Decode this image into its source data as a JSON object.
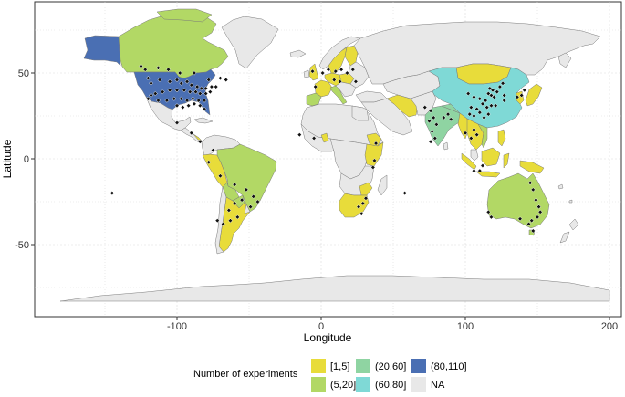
{
  "chart_data": {
    "type": "choropleth",
    "xlabel": "Longitude",
    "ylabel": "Latitude",
    "xlim": [
      -190,
      205
    ],
    "ylim": [
      -90,
      90
    ],
    "x_ticks": [
      -100,
      0,
      100,
      200
    ],
    "y_ticks": [
      -50,
      0,
      50
    ],
    "x_tick_labels": [
      "-100",
      "0",
      "100",
      "200"
    ],
    "y_tick_labels": [
      "-50",
      "0",
      "50"
    ],
    "grid": true,
    "legend": {
      "title": "Number of experiments",
      "position": "bottom",
      "entries": [
        {
          "label": "[1,5]",
          "color": "#e8dc3a"
        },
        {
          "label": "(5,20]",
          "color": "#b2d865"
        },
        {
          "label": "(20,60]",
          "color": "#8fd4a2"
        },
        {
          "label": "(60,80]",
          "color": "#7fd9d6"
        },
        {
          "label": "(80,110]",
          "color": "#4a6fb3"
        },
        {
          "label": "NA",
          "color": "#e8e8e8"
        }
      ]
    },
    "experiment_sites": [
      [
        -120,
        47
      ],
      [
        -118,
        44
      ],
      [
        -112,
        46
      ],
      [
        -105,
        45
      ],
      [
        -100,
        46
      ],
      [
        -97,
        44
      ],
      [
        -93,
        45
      ],
      [
        -90,
        43
      ],
      [
        -86,
        42
      ],
      [
        -83,
        41
      ],
      [
        -80,
        41
      ],
      [
        -76,
        42
      ],
      [
        -73,
        42
      ],
      [
        -118,
        37
      ],
      [
        -115,
        38
      ],
      [
        -110,
        39
      ],
      [
        -105,
        40
      ],
      [
        -100,
        40
      ],
      [
        -95,
        40
      ],
      [
        -91,
        39
      ],
      [
        -87,
        39
      ],
      [
        -84,
        38
      ],
      [
        -80,
        38
      ],
      [
        -77,
        39
      ],
      [
        -120,
        35
      ],
      [
        -113,
        34
      ],
      [
        -107,
        34
      ],
      [
        -102,
        35
      ],
      [
        -97,
        35
      ],
      [
        -93,
        34
      ],
      [
        -89,
        35
      ],
      [
        -85,
        34
      ],
      [
        -81,
        34
      ],
      [
        -100,
        31
      ],
      [
        -96,
        30
      ],
      [
        -92,
        31
      ],
      [
        -88,
        32
      ],
      [
        -84,
        31
      ],
      [
        -81,
        29
      ],
      [
        -125,
        54
      ],
      [
        -122,
        52
      ],
      [
        -113,
        53
      ],
      [
        -106,
        52
      ],
      [
        -98,
        50
      ],
      [
        -88,
        50
      ],
      [
        -78,
        46
      ],
      [
        -70,
        47
      ],
      [
        -66,
        46
      ],
      [
        -100,
        21
      ],
      [
        -90,
        15
      ],
      [
        -84,
        10
      ],
      [
        -75,
        5
      ],
      [
        -78,
        -2
      ],
      [
        -70,
        -10
      ],
      [
        -60,
        -15
      ],
      [
        -52,
        -18
      ],
      [
        -47,
        -22
      ],
      [
        -44,
        -25
      ],
      [
        -49,
        -28
      ],
      [
        -55,
        -24
      ],
      [
        -60,
        -26
      ],
      [
        -64,
        -30
      ],
      [
        -58,
        -34
      ],
      [
        -63,
        -36
      ],
      [
        -68,
        -38
      ],
      [
        -72,
        -36
      ],
      [
        -6,
        51
      ],
      [
        1,
        50
      ],
      [
        5,
        52
      ],
      [
        10,
        51
      ],
      [
        14,
        52
      ],
      [
        18,
        50
      ],
      [
        22,
        52
      ],
      [
        9,
        46
      ],
      [
        13,
        45
      ],
      [
        24,
        45
      ],
      [
        -4,
        42
      ],
      [
        -15,
        14
      ],
      [
        -5,
        12
      ],
      [
        38,
        9
      ],
      [
        37,
        -1
      ],
      [
        36,
        -5
      ],
      [
        31,
        -23
      ],
      [
        29,
        -26
      ],
      [
        26,
        -28
      ],
      [
        28,
        -32
      ],
      [
        58,
        -20
      ],
      [
        -145,
        -20
      ],
      [
        72,
        30
      ],
      [
        76,
        28
      ],
      [
        78,
        24
      ],
      [
        75,
        22
      ],
      [
        80,
        20
      ],
      [
        77,
        16
      ],
      [
        79,
        12
      ],
      [
        76,
        10
      ],
      [
        85,
        24
      ],
      [
        88,
        26
      ],
      [
        90,
        23
      ],
      [
        102,
        38
      ],
      [
        106,
        36
      ],
      [
        110,
        35
      ],
      [
        114,
        34
      ],
      [
        116,
        38
      ],
      [
        118,
        37
      ],
      [
        120,
        36
      ],
      [
        112,
        32
      ],
      [
        115,
        30
      ],
      [
        118,
        31
      ],
      [
        121,
        31
      ],
      [
        110,
        27
      ],
      [
        113,
        24
      ],
      [
        116,
        26
      ],
      [
        104,
        30
      ],
      [
        108,
        29
      ],
      [
        106,
        25
      ],
      [
        103,
        26
      ],
      [
        119,
        40
      ],
      [
        124,
        42
      ],
      [
        126,
        44
      ],
      [
        117,
        41
      ],
      [
        122,
        39
      ],
      [
        100,
        15
      ],
      [
        104,
        12
      ],
      [
        106,
        17
      ],
      [
        108,
        14
      ],
      [
        127,
        37
      ],
      [
        127,
        34
      ],
      [
        136,
        36
      ],
      [
        139,
        37
      ],
      [
        141,
        40
      ],
      [
        110,
        -7
      ],
      [
        106,
        -7
      ],
      [
        112,
        -4
      ],
      [
        145,
        -14
      ],
      [
        147,
        -18
      ],
      [
        149,
        -24
      ],
      [
        151,
        -28
      ],
      [
        152,
        -31
      ],
      [
        150,
        -34
      ],
      [
        146,
        -36
      ],
      [
        144,
        -38
      ],
      [
        138,
        -35
      ],
      [
        116,
        -31
      ],
      [
        118,
        -34
      ],
      [
        147,
        -42
      ]
    ]
  }
}
